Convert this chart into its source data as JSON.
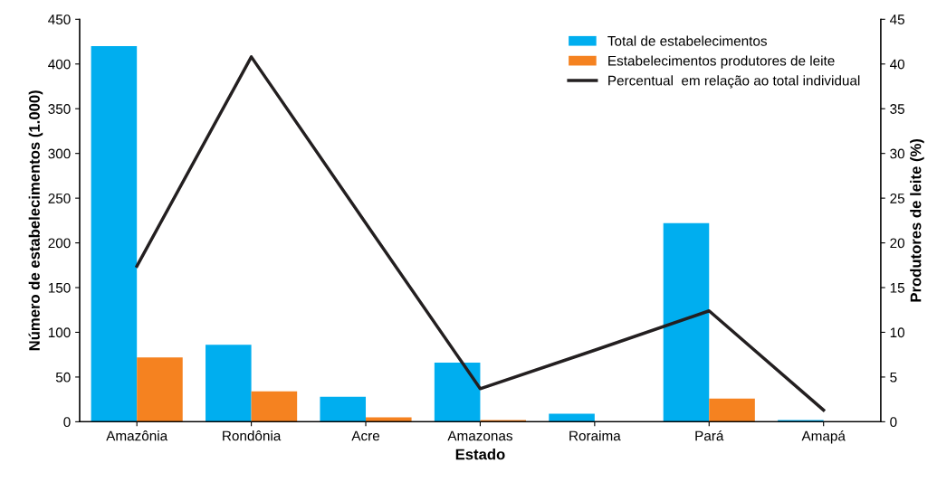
{
  "chart_data": {
    "type": "bar",
    "xlabel": "Estado",
    "ylabel": "Número de estabelecimentos (1.000)",
    "y2label": "Produtores de leite (%)",
    "categories": [
      "Amazônia",
      "Rondônia",
      "Acre",
      "Amazonas",
      "Roraima",
      "Pará",
      "Amapá"
    ],
    "series": [
      {
        "name": "Total de estabelecimentos",
        "color": "#00aeef",
        "values": [
          420,
          86,
          28,
          66,
          9,
          222,
          2
        ]
      },
      {
        "name": "Estabelecimentos produtores de leite",
        "color": "#f58220",
        "values": [
          72,
          34,
          5,
          2,
          0.5,
          26,
          0.2
        ]
      },
      {
        "name": "Percentual  em relação ao total individual",
        "color": "#231f20",
        "type": "line",
        "axis": "y2",
        "values": [
          17.4,
          40.8,
          22.2,
          3.7,
          8.0,
          12.4,
          1.3
        ]
      }
    ],
    "ylim": [
      0,
      450
    ],
    "yticks": [
      0,
      50,
      100,
      150,
      200,
      250,
      300,
      350,
      400,
      450
    ],
    "y2lim": [
      0,
      45
    ],
    "y2ticks": [
      0,
      5,
      10,
      15,
      20,
      25,
      30,
      35,
      40,
      45
    ],
    "grid": false,
    "legend": "top right",
    "marker": "none",
    "line_style": "solid"
  }
}
